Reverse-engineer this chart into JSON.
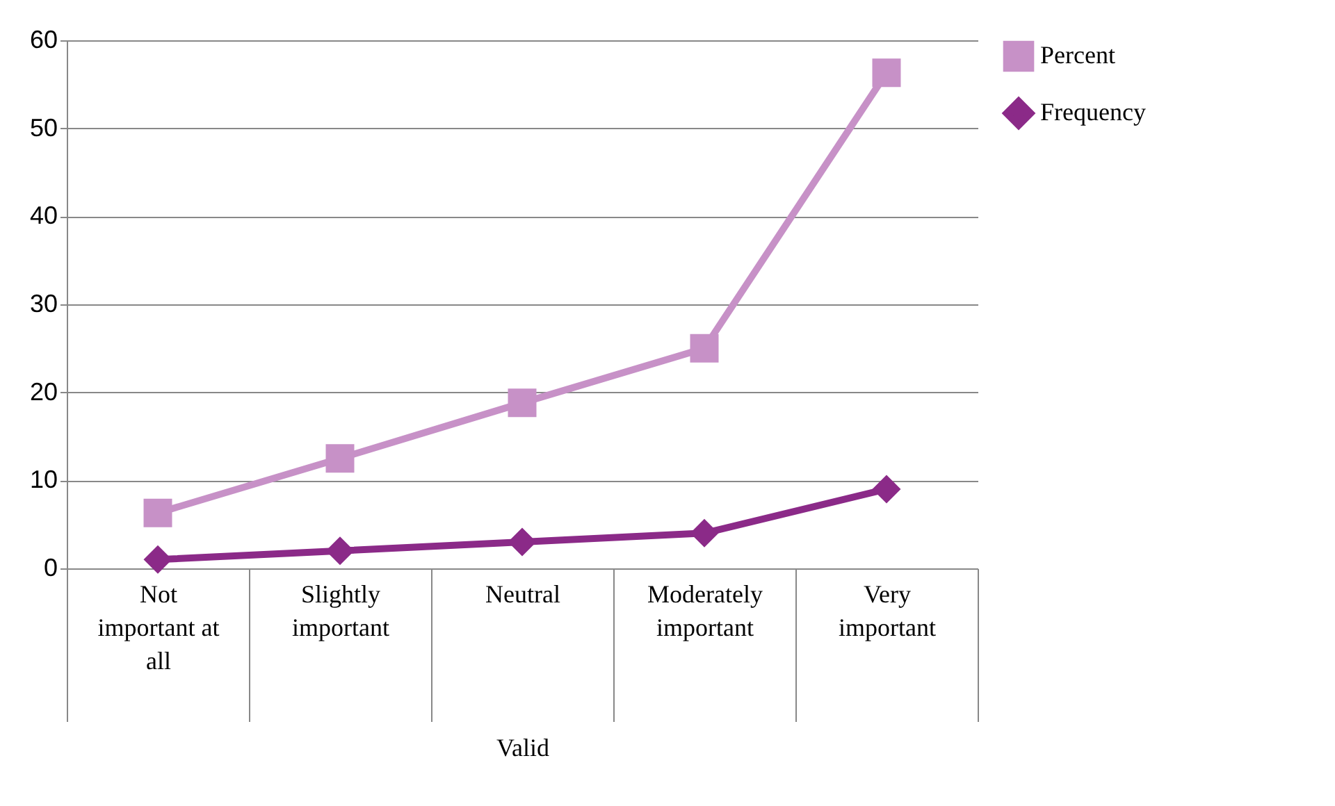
{
  "chart_data": {
    "type": "line",
    "xlabel": "Valid",
    "categories": [
      "Not important at all",
      "Slightly important",
      "Neutral",
      "Moderately important",
      "Very important"
    ],
    "series": [
      {
        "name": "Percent",
        "color": "#c791c7",
        "marker": "square",
        "values": [
          6.3,
          12.5,
          18.8,
          25,
          56.3
        ]
      },
      {
        "name": "Frequency",
        "color": "#8b2a88",
        "marker": "diamond",
        "values": [
          1,
          2,
          3,
          4,
          9
        ]
      }
    ],
    "ylim": [
      0,
      60
    ],
    "yticks": [
      0,
      10,
      20,
      30,
      40,
      50,
      60
    ],
    "grid": "y",
    "legend": "right"
  }
}
